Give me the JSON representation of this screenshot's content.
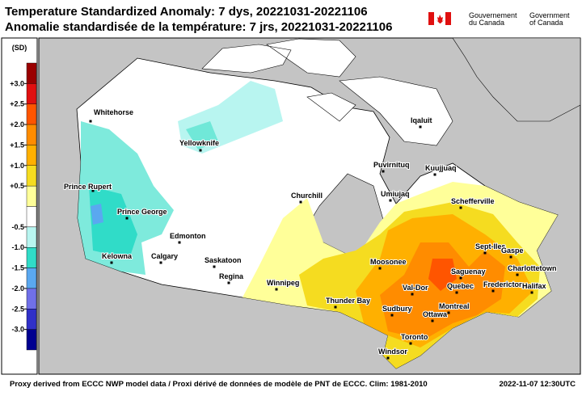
{
  "header": {
    "title": "Temperature Standardized Anomaly: 7 dys, 20221031-20221106",
    "title_fr": "Anomalie standardisée de la température: 7 jrs, 20221031-20221106",
    "government_fr": [
      "Gouvernement",
      "du Canada"
    ],
    "government_en": [
      "Government",
      "of Canada"
    ]
  },
  "legend": {
    "unit": "(SD)",
    "ticks": [
      {
        "value": 3,
        "label": "+3.0"
      },
      {
        "value": 2.5,
        "label": "+2.5"
      },
      {
        "value": 2,
        "label": "+2.0"
      },
      {
        "value": 1.5,
        "label": "+1.5"
      },
      {
        "value": 1,
        "label": "+1.0"
      },
      {
        "value": 0.5,
        "label": "+0.5"
      },
      -0.5,
      {
        "value": -1,
        "label": "-1.0"
      },
      -1.5,
      {
        "value": -2,
        "label": "-2.0"
      },
      -2.5,
      {
        "value": -3,
        "label": "-3.0"
      }
    ],
    "colors": [
      "#9a0000",
      "#e01010",
      "#ff5500",
      "#ff8c00",
      "#ffb000",
      "#f5dc20",
      "#ffff99",
      "#ffffff",
      "#b8f5f0",
      "#30dcc8",
      "#5aa8f0",
      "#7070e8",
      "#3030c8",
      "#000090"
    ]
  },
  "map": {
    "cities": [
      "Whitehorse",
      "Yellowknife",
      "Iqaluit",
      "Prince Rupert",
      "Prince George",
      "Edmonton",
      "Kelowna",
      "Calgary",
      "Saskatoon",
      "Regina",
      "Churchill",
      "Puvirnituq",
      "Kuujjuaq",
      "Umiujaq",
      "Schefferville",
      "Sept-Iles",
      "Gaspe",
      "Charlottetown",
      "Fredericton",
      "Halifax",
      "Saguenay",
      "Quebec",
      "Moosonee",
      "Val-Dor",
      "Winnipeg",
      "Thunder Bay",
      "Sudbury",
      "Montreal",
      "Ottawa",
      "Toronto",
      "Windsor"
    ]
  },
  "footer": {
    "note": "Proxy derived from ECCC NWP model data / Proxi dérivé de données de modèle de PNT de ECCC. Clim: 1981-2010",
    "timestamp": "2022-11-07 12:30UTC"
  }
}
